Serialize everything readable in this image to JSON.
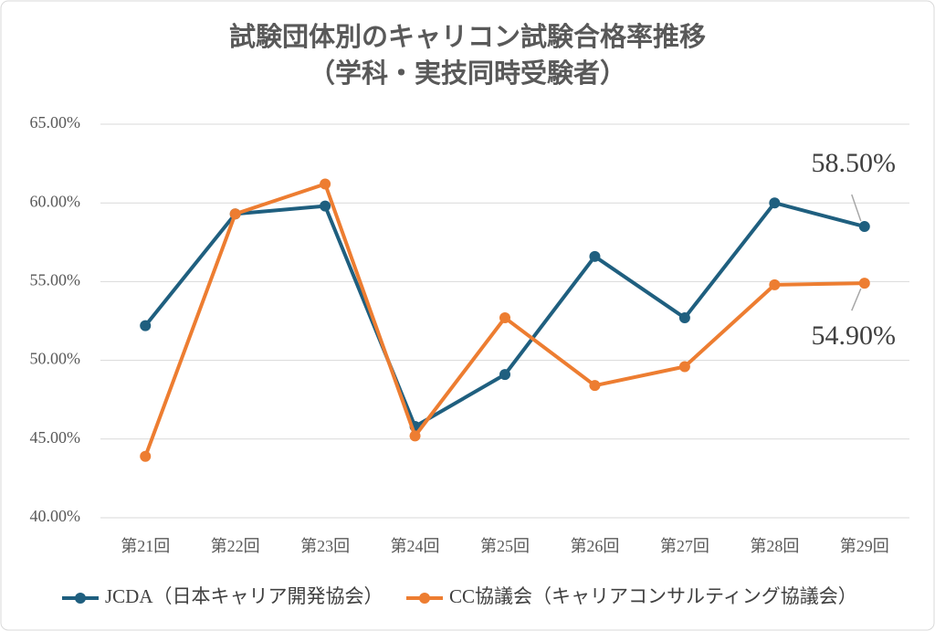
{
  "chart_data": {
    "type": "line",
    "title": "試験団体別のキャリコン試験合格率推移",
    "subtitle": "（学科・実技同時受験者）",
    "categories": [
      "第21回",
      "第22回",
      "第23回",
      "第24回",
      "第25回",
      "第26回",
      "第27回",
      "第28回",
      "第29回"
    ],
    "series": [
      {
        "name": "JCDA（日本キャリア開発協会）",
        "color": "#1f5f7f",
        "values": [
          52.2,
          59.3,
          59.8,
          45.8,
          49.1,
          56.6,
          52.7,
          60.0,
          58.5
        ],
        "value_labels": [
          null,
          null,
          null,
          null,
          null,
          null,
          null,
          null,
          "58.50%"
        ]
      },
      {
        "name": "CC協議会（キャリアコンサルティング協議会）",
        "color": "#ed7d31",
        "values": [
          43.9,
          59.3,
          61.2,
          45.2,
          52.7,
          48.4,
          49.6,
          54.8,
          54.9
        ],
        "value_labels": [
          null,
          null,
          null,
          null,
          null,
          null,
          null,
          null,
          "54.90%"
        ]
      }
    ],
    "ylim": [
      40,
      65
    ],
    "yticks": [
      {
        "value": 40,
        "label": "40.00%"
      },
      {
        "value": 45,
        "label": "45.00%"
      },
      {
        "value": 50,
        "label": "50.00%"
      },
      {
        "value": 55,
        "label": "55.00%"
      },
      {
        "value": 60,
        "label": "60.00%"
      },
      {
        "value": 65,
        "label": "65.00%"
      }
    ],
    "grid": true
  }
}
